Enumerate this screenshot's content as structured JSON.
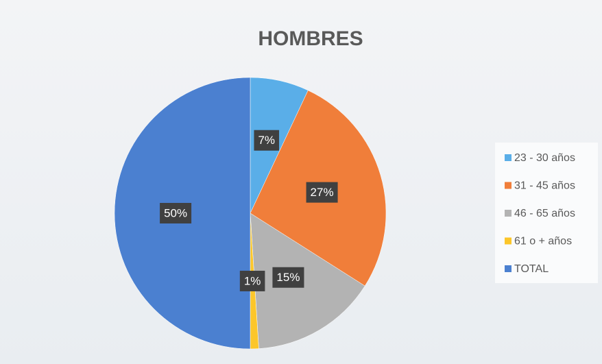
{
  "chart_data": {
    "type": "pie",
    "title": "HOMBRES",
    "categories": [
      "23 - 30 años",
      "31 - 45 años",
      "46 - 65 años",
      "61 o + años",
      "TOTAL"
    ],
    "values": [
      7,
      27,
      15,
      1,
      50
    ],
    "value_labels": [
      "7%",
      "27%",
      "15%",
      "1%",
      "50%"
    ],
    "colors": [
      "#5aaee8",
      "#f07e3a",
      "#b3b3b3",
      "#fcc62a",
      "#4b80d0"
    ],
    "legend": "right"
  }
}
